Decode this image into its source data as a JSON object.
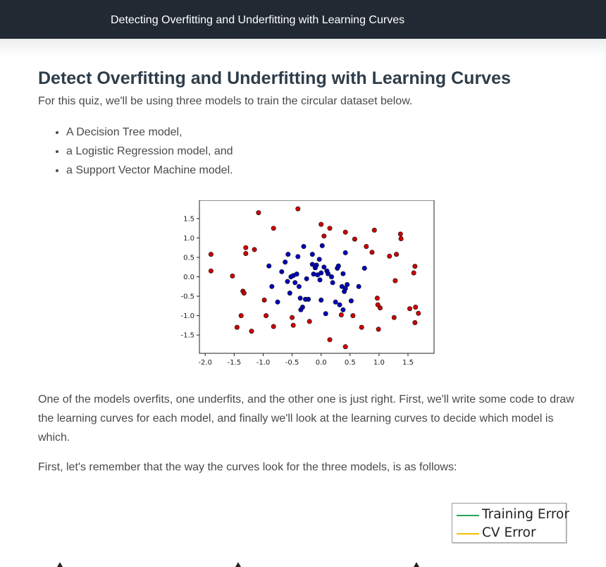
{
  "header": {
    "title": "Detecting Overfitting and Underfitting with Learning Curves"
  },
  "main": {
    "heading": "Detect Overfitting and Underfitting with Learning Curves",
    "intro": "For this quiz, we'll be using three models to train the circular dataset below.",
    "models": [
      "A Decision Tree model,",
      "a Logistic Regression model, and",
      "a Support Vector Machine model."
    ],
    "paragraph1": "One of the models overfits, one underfits, and the other one is just right. First, we'll write some code to draw the learning curves for each model, and finally we'll look at the learning curves to decide which model is which.",
    "paragraph2": "First, let's remember that the way the curves look for the three models, is as follows:"
  },
  "legend": {
    "items": [
      {
        "label": "Training Error",
        "color": "#2ca25f"
      },
      {
        "label": "CV Error",
        "color": "#f2c200"
      }
    ]
  },
  "chart_data": {
    "type": "scatter",
    "title": "",
    "xlabel": "",
    "ylabel": "",
    "xlim": [
      -2.1,
      1.95
    ],
    "ylim": [
      -1.97,
      1.97
    ],
    "x_ticks": [
      -2.0,
      -1.5,
      -1.0,
      -0.5,
      0.0,
      0.5,
      1.0,
      1.5
    ],
    "x_tick_labels": [
      "-2.0",
      "-1.5",
      "-1.0",
      "-0.5",
      "0.0",
      "0.5",
      "1.0",
      "1.5"
    ],
    "y_ticks": [
      1.5,
      1.0,
      0.5,
      0.0,
      -0.5,
      -1.0,
      -1.5
    ],
    "y_tick_labels": [
      "1.5",
      "1.0",
      "0.5",
      "0.0",
      "-0.5",
      "-1.0",
      "-1.5"
    ],
    "grid": false,
    "series": [
      {
        "color": "#cc0000",
        "points": [
          [
            -1.9,
            0.58
          ],
          [
            -1.9,
            0.15
          ],
          [
            -1.53,
            0.02
          ],
          [
            -1.45,
            -1.3
          ],
          [
            -1.38,
            -1.0
          ],
          [
            -1.35,
            -0.37
          ],
          [
            -1.33,
            -0.42
          ],
          [
            -1.3,
            0.75
          ],
          [
            -1.3,
            0.6
          ],
          [
            -1.2,
            -1.4
          ],
          [
            -1.15,
            0.7
          ],
          [
            -1.08,
            1.65
          ],
          [
            -0.98,
            -0.6
          ],
          [
            -0.95,
            -1.0
          ],
          [
            -0.82,
            1.25
          ],
          [
            -0.82,
            -1.28
          ],
          [
            -0.5,
            -1.05
          ],
          [
            -0.48,
            -1.25
          ],
          [
            -0.4,
            1.75
          ],
          [
            -0.2,
            -1.15
          ],
          [
            0.0,
            1.35
          ],
          [
            0.05,
            1.05
          ],
          [
            0.15,
            1.25
          ],
          [
            0.15,
            -1.62
          ],
          [
            0.35,
            -0.98
          ],
          [
            0.42,
            -1.8
          ],
          [
            0.42,
            1.15
          ],
          [
            0.55,
            -1.0
          ],
          [
            0.58,
            0.97
          ],
          [
            0.7,
            -1.3
          ],
          [
            0.78,
            0.78
          ],
          [
            0.88,
            0.63
          ],
          [
            0.92,
            1.2
          ],
          [
            0.97,
            -0.55
          ],
          [
            0.98,
            -0.72
          ],
          [
            1.02,
            -0.8
          ],
          [
            0.99,
            -1.35
          ],
          [
            1.18,
            0.53
          ],
          [
            1.26,
            -1.05
          ],
          [
            1.28,
            -0.1
          ],
          [
            1.3,
            0.58
          ],
          [
            1.37,
            1.1
          ],
          [
            1.38,
            0.98
          ],
          [
            1.53,
            -0.82
          ],
          [
            1.6,
            0.1
          ],
          [
            1.62,
            0.27
          ],
          [
            1.63,
            -0.78
          ],
          [
            1.62,
            -1.18
          ],
          [
            1.68,
            -0.94
          ]
        ]
      },
      {
        "color": "#0000b8",
        "points": [
          [
            -0.9,
            0.28
          ],
          [
            -0.85,
            -0.25
          ],
          [
            -0.75,
            -0.65
          ],
          [
            -0.68,
            0.13
          ],
          [
            -0.62,
            0.38
          ],
          [
            -0.58,
            -0.12
          ],
          [
            -0.57,
            0.58
          ],
          [
            -0.54,
            -0.42
          ],
          [
            -0.52,
            0.0
          ],
          [
            -0.48,
            0.03
          ],
          [
            -0.45,
            -0.15
          ],
          [
            -0.42,
            0.07
          ],
          [
            -0.4,
            0.52
          ],
          [
            -0.38,
            -0.25
          ],
          [
            -0.36,
            -0.55
          ],
          [
            -0.35,
            -0.85
          ],
          [
            -0.32,
            -0.78
          ],
          [
            -0.3,
            0.78
          ],
          [
            -0.27,
            -0.58
          ],
          [
            -0.25,
            -0.05
          ],
          [
            -0.22,
            -0.58
          ],
          [
            -0.15,
            0.58
          ],
          [
            -0.15,
            0.32
          ],
          [
            -0.13,
            0.07
          ],
          [
            -0.1,
            0.23
          ],
          [
            -0.08,
            0.3
          ],
          [
            -0.06,
            0.05
          ],
          [
            -0.03,
            0.45
          ],
          [
            -0.02,
            -0.08
          ],
          [
            0.0,
            -0.6
          ],
          [
            0.0,
            0.1
          ],
          [
            0.02,
            0.8
          ],
          [
            0.05,
            0.25
          ],
          [
            0.08,
            -0.95
          ],
          [
            0.1,
            0.15
          ],
          [
            0.12,
            0.08
          ],
          [
            0.18,
            0.0
          ],
          [
            0.2,
            -0.15
          ],
          [
            0.25,
            -0.65
          ],
          [
            0.28,
            0.22
          ],
          [
            0.3,
            0.28
          ],
          [
            0.32,
            -0.72
          ],
          [
            0.36,
            -0.25
          ],
          [
            0.38,
            -0.85
          ],
          [
            0.38,
            0.08
          ],
          [
            0.4,
            -0.38
          ],
          [
            0.42,
            -0.3
          ],
          [
            0.42,
            0.62
          ],
          [
            0.45,
            -0.2
          ],
          [
            0.52,
            -0.62
          ],
          [
            0.65,
            -0.25
          ],
          [
            0.75,
            0.22
          ]
        ]
      }
    ]
  }
}
